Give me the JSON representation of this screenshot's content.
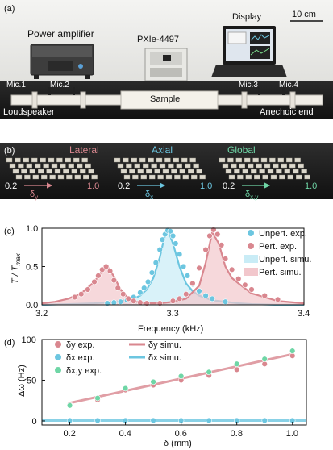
{
  "colors": {
    "pink": "#d9878f",
    "pink_fill": "#f2c7cc",
    "blue": "#6cc6e0",
    "blue_fill": "#c9ecf6",
    "green": "#6fd6a6",
    "gray": "#888888"
  },
  "panel_a": {
    "label": "(a)",
    "scale_bar": "10 cm",
    "labels": {
      "power_amplifier": "Power amplifier",
      "pxie": "PXIe-4497",
      "display": "Display",
      "mic1": "Mic.1",
      "mic2": "Mic.2",
      "mic3": "Mic.3",
      "mic4": "Mic.4",
      "sample": "Sample",
      "loudspeaker": "Loudspeaker",
      "anechoic_end": "Anechoic end"
    }
  },
  "panel_b": {
    "label": "(b)",
    "groups": [
      {
        "title": "Lateral",
        "start": "0.2",
        "end": "1.0",
        "symbol": "δ",
        "sub": "y"
      },
      {
        "title": "Axial",
        "start": "0.2",
        "end": "1.0",
        "symbol": "δ",
        "sub": "x"
      },
      {
        "title": "Global",
        "start": "0.2",
        "end": "1.0",
        "symbol": "δ",
        "sub": "x,y"
      }
    ]
  },
  "chart_data": [
    {
      "type": "line",
      "panel_label": "(c)",
      "xlabel": "Frequency (kHz)",
      "ylabel_main": "T",
      "ylabel_sub": "max",
      "xlim": [
        3.2,
        3.4
      ],
      "ylim": [
        0,
        1.0
      ],
      "xticks": [
        "3.2",
        "3.3",
        "3.4"
      ],
      "yticks": [
        "0.0",
        "0.5",
        "1.0"
      ],
      "legend": [
        "Unpert. exp.",
        "Pert. exp.",
        "Unpert. simu.",
        "Pert. simu."
      ],
      "legend_position": "top-right",
      "series": [
        {
          "name": "Unpert. simu.",
          "color": "#6cc6e0",
          "fill": "#c9ecf6",
          "x": [
            3.2,
            3.22,
            3.24,
            3.25,
            3.26,
            3.27,
            3.275,
            3.28,
            3.285,
            3.29,
            3.293,
            3.296,
            3.3,
            3.305,
            3.31,
            3.315,
            3.32,
            3.33,
            3.34,
            3.35,
            3.36,
            3.38,
            3.4
          ],
          "y": [
            0.0,
            0.01,
            0.02,
            0.03,
            0.05,
            0.08,
            0.12,
            0.2,
            0.35,
            0.62,
            0.85,
            0.99,
            0.8,
            0.5,
            0.28,
            0.18,
            0.12,
            0.06,
            0.04,
            0.02,
            0.01,
            0.0,
            0.0
          ]
        },
        {
          "name": "Pert. simu.",
          "color": "#d9878f",
          "fill": "#f2c7cc",
          "x": [
            3.2,
            3.21,
            3.22,
            3.23,
            3.24,
            3.245,
            3.25,
            3.255,
            3.26,
            3.265,
            3.27,
            3.275,
            3.28,
            3.29,
            3.3,
            3.31,
            3.32,
            3.325,
            3.33,
            3.335,
            3.34,
            3.345,
            3.35,
            3.36,
            3.37,
            3.38,
            3.4
          ],
          "y": [
            0.02,
            0.04,
            0.08,
            0.15,
            0.3,
            0.42,
            0.5,
            0.37,
            0.2,
            0.1,
            0.05,
            0.03,
            0.02,
            0.02,
            0.04,
            0.08,
            0.25,
            0.55,
            0.95,
            0.8,
            0.5,
            0.35,
            0.28,
            0.15,
            0.1,
            0.05,
            0.02
          ]
        }
      ],
      "points": [
        {
          "name": "Unpert. exp.",
          "color": "#6cc6e0",
          "x": [
            3.25,
            3.255,
            3.26,
            3.265,
            3.27,
            3.275,
            3.278,
            3.281,
            3.284,
            3.287,
            3.29,
            3.292,
            3.294,
            3.296,
            3.298,
            3.3,
            3.302,
            3.305,
            3.308,
            3.311,
            3.315,
            3.32,
            3.325,
            3.33,
            3.34
          ],
          "y": [
            0.02,
            0.03,
            0.04,
            0.06,
            0.1,
            0.16,
            0.22,
            0.3,
            0.42,
            0.55,
            0.72,
            0.85,
            0.92,
            0.97,
            0.96,
            0.9,
            0.8,
            0.66,
            0.5,
            0.38,
            0.27,
            0.18,
            0.12,
            0.08,
            0.04
          ]
        },
        {
          "name": "Pert. exp.",
          "color": "#d9878f",
          "x": [
            3.225,
            3.23,
            3.235,
            3.24,
            3.243,
            3.246,
            3.249,
            3.252,
            3.255,
            3.258,
            3.262,
            3.266,
            3.27,
            3.275,
            3.28,
            3.29,
            3.3,
            3.305,
            3.31,
            3.315,
            3.32,
            3.325,
            3.328,
            3.331,
            3.334,
            3.337,
            3.34,
            3.345,
            3.35,
            3.355,
            3.36,
            3.37,
            3.38
          ],
          "y": [
            0.1,
            0.14,
            0.2,
            0.3,
            0.38,
            0.46,
            0.5,
            0.44,
            0.32,
            0.22,
            0.14,
            0.08,
            0.05,
            0.03,
            0.02,
            0.02,
            0.05,
            0.08,
            0.14,
            0.28,
            0.48,
            0.72,
            0.9,
            0.98,
            0.92,
            0.78,
            0.6,
            0.46,
            0.34,
            0.26,
            0.2,
            0.12,
            0.07
          ]
        }
      ]
    },
    {
      "type": "scatter",
      "panel_label": "(d)",
      "xlabel": "δ (mm)",
      "ylabel": "Δω (Hz)",
      "xlim": [
        0.1,
        1.05
      ],
      "ylim": [
        -5,
        100
      ],
      "xticks": [
        "0.2",
        "0.4",
        "0.6",
        "0.8",
        "1.0"
      ],
      "yticks": [
        "0",
        "50",
        "100"
      ],
      "legend": [
        "δy exp.",
        "δx exp.",
        "δx,y exp.",
        "δy simu.",
        "δx simu."
      ],
      "legend_position": "top-left",
      "x": [
        0.2,
        0.3,
        0.4,
        0.5,
        0.6,
        0.7,
        0.8,
        0.9,
        1.0
      ],
      "series": [
        {
          "name": "δy exp.",
          "color": "#d9878f",
          "y": [
            20,
            26,
            38,
            44,
            50,
            56,
            63,
            70,
            80
          ]
        },
        {
          "name": "δx exp.",
          "color": "#6cc6e0",
          "y": [
            0.5,
            0.5,
            0.5,
            0.5,
            0.5,
            0.5,
            0.5,
            0.5,
            0.5
          ]
        },
        {
          "name": "δx,y exp.",
          "color": "#6fd6a6",
          "y": [
            19,
            28,
            40,
            48,
            55,
            60,
            70,
            76,
            86
          ]
        },
        {
          "name": "δy simu.",
          "color": "#d9878f",
          "x_line": [
            0.2,
            1.0
          ],
          "y_line": [
            22,
            82
          ]
        },
        {
          "name": "δx simu.",
          "color": "#6cc6e0",
          "x_line": [
            0.1,
            1.05
          ],
          "y_line": [
            0.5,
            0.5
          ]
        }
      ]
    }
  ]
}
